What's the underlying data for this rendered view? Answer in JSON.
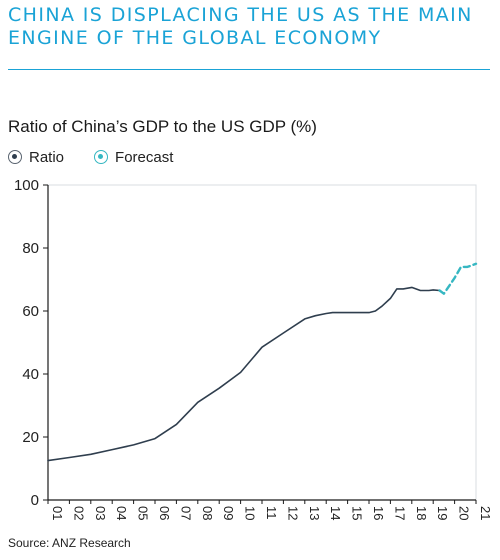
{
  "headline": {
    "line1": "CHINA IS DISPLACING THE US AS THE MAIN",
    "line2": "ENGINE OF THE GLOBAL ECONOMY"
  },
  "legend": {
    "ratio_label": "Ratio",
    "forecast_label": "Forecast"
  },
  "source": "Source: ANZ Research",
  "colors": {
    "headline": "#1aa3d6",
    "ratio_line": "#2f3e4e",
    "forecast_line": "#36b7c2",
    "plot_border": "#d8dde2"
  },
  "chart_data": {
    "type": "line",
    "title": "Ratio of China’s GDP to the US GDP (%)",
    "xlabel": "",
    "ylabel": "",
    "ylim": [
      0,
      100
    ],
    "yticks": [
      0,
      20,
      40,
      60,
      80,
      100
    ],
    "xlim": [
      2001,
      2021
    ],
    "xtick_labels": [
      "01",
      "02",
      "03",
      "04",
      "05",
      "06",
      "07",
      "08",
      "09",
      "10",
      "11",
      "12",
      "13",
      "14",
      "15",
      "16",
      "17",
      "18",
      "19",
      "20",
      "21"
    ],
    "grid": false,
    "legend": "top-left",
    "series": [
      {
        "name": "Ratio",
        "style": "solid",
        "x": [
          2001,
          2002,
          2003,
          2004,
          2005,
          2006,
          2007,
          2008,
          2009,
          2010,
          2011,
          2012,
          2013,
          2013.5,
          2014,
          2014.3,
          2015,
          2016,
          2016.3,
          2016.6,
          2017,
          2017.3,
          2017.6,
          2018,
          2018.4,
          2018.8,
          2019,
          2019.3
        ],
        "y": [
          12.5,
          13.5,
          14.5,
          16,
          17.5,
          19.5,
          24,
          31,
          35.5,
          40.5,
          48.5,
          53,
          57.5,
          58.5,
          59.2,
          59.5,
          59.5,
          59.5,
          60,
          61.5,
          64,
          67,
          67,
          67.5,
          66.5,
          66.5,
          66.7,
          66.5
        ]
      },
      {
        "name": "Forecast",
        "style": "dashed",
        "x": [
          2019.3,
          2019.5,
          2020,
          2020.3,
          2020.6,
          2021
        ],
        "y": [
          66.5,
          65.5,
          70.5,
          74,
          74,
          75
        ]
      }
    ]
  }
}
